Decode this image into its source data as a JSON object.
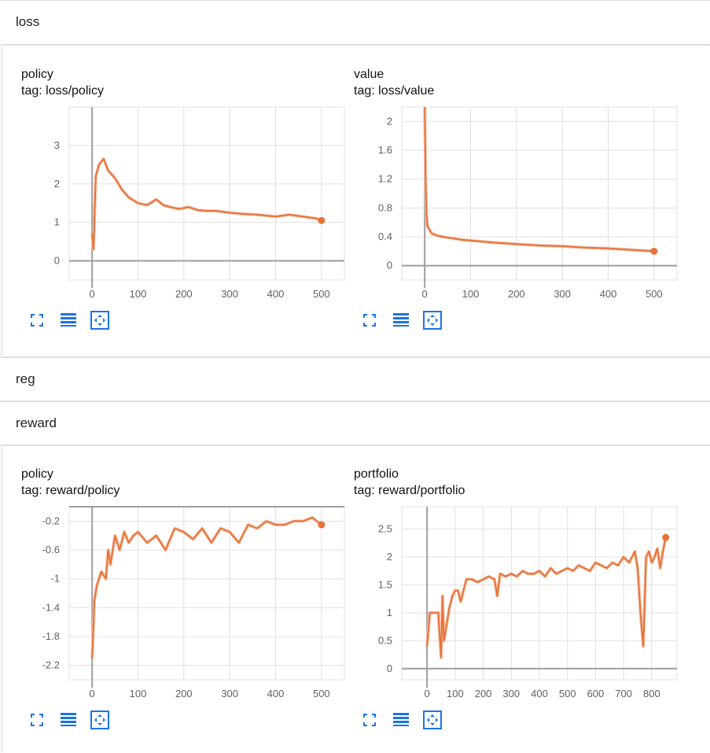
{
  "sections": [
    {
      "name": "loss"
    },
    {
      "name": "reg"
    },
    {
      "name": "reward"
    }
  ],
  "colors": {
    "accent": "#e8733a",
    "smoothed_faint": "#f5c5ab",
    "icon": "#1a73e8",
    "axis": "#9e9e9e"
  },
  "toolbar_icons": [
    "fullscreen-icon",
    "toggle-log-scale-icon",
    "fit-domain-icon"
  ],
  "charts": [
    {
      "title": "policy",
      "tag": "tag: loss/policy",
      "xticks": [
        "0",
        "100",
        "200",
        "300",
        "400",
        "500"
      ],
      "yticks": [
        "0",
        "1",
        "2",
        "3"
      ]
    },
    {
      "title": "value",
      "tag": "tag: loss/value",
      "xticks": [
        "0",
        "100",
        "200",
        "300",
        "400",
        "500"
      ],
      "yticks": [
        "0",
        "0.4",
        "0.8",
        "1.2",
        "1.6",
        "2"
      ]
    },
    {
      "title": "policy",
      "tag": "tag: reward/policy",
      "xticks": [
        "0",
        "100",
        "200",
        "300",
        "400",
        "500"
      ],
      "yticks": [
        "-2.2",
        "-1.8",
        "-1.4",
        "-1",
        "-0.6",
        "-0.2"
      ]
    },
    {
      "title": "portfolio",
      "tag": "tag: reward/portfolio",
      "xticks": [
        "0",
        "100",
        "200",
        "300",
        "400",
        "500",
        "600",
        "700",
        "800"
      ],
      "yticks": [
        "0",
        "0.5",
        "1",
        "1.5",
        "2",
        "2.5"
      ]
    }
  ],
  "chart_data": [
    {
      "type": "line",
      "title": "policy",
      "subtitle": "tag: loss/policy",
      "xlim": [
        -50,
        550
      ],
      "ylim": [
        -0.5,
        4
      ],
      "series": [
        {
          "x": [
            0,
            3,
            8,
            15,
            25,
            35,
            50,
            65,
            80,
            100,
            120,
            140,
            155,
            170,
            190,
            210,
            230,
            250,
            270,
            300,
            330,
            360,
            400,
            430,
            460,
            490,
            500
          ],
          "y": [
            0.7,
            0.3,
            2.2,
            2.5,
            2.65,
            2.35,
            2.15,
            1.85,
            1.65,
            1.5,
            1.45,
            1.6,
            1.45,
            1.4,
            1.35,
            1.4,
            1.32,
            1.3,
            1.3,
            1.25,
            1.22,
            1.2,
            1.15,
            1.2,
            1.15,
            1.1,
            1.05
          ]
        }
      ],
      "grid": true
    },
    {
      "type": "line",
      "title": "value",
      "subtitle": "tag: loss/value",
      "xlim": [
        -50,
        550
      ],
      "ylim": [
        -0.2,
        2.2
      ],
      "series": [
        {
          "x": [
            0,
            2,
            4,
            6,
            10,
            15,
            25,
            40,
            60,
            80,
            100,
            150,
            200,
            250,
            300,
            350,
            400,
            450,
            500
          ],
          "y": [
            2.2,
            1.2,
            0.7,
            0.55,
            0.5,
            0.45,
            0.42,
            0.4,
            0.38,
            0.36,
            0.35,
            0.32,
            0.3,
            0.28,
            0.27,
            0.25,
            0.24,
            0.22,
            0.2
          ]
        }
      ],
      "grid": true
    },
    {
      "type": "line",
      "title": "policy",
      "subtitle": "tag: reward/policy",
      "xlim": [
        -50,
        550
      ],
      "ylim": [
        -2.4,
        0
      ],
      "series": [
        {
          "x": [
            0,
            5,
            10,
            20,
            30,
            35,
            40,
            50,
            60,
            70,
            80,
            90,
            100,
            120,
            140,
            160,
            180,
            200,
            220,
            240,
            260,
            280,
            300,
            320,
            340,
            360,
            380,
            400,
            420,
            440,
            460,
            480,
            500
          ],
          "y": [
            -2.1,
            -1.3,
            -1.1,
            -0.9,
            -1.0,
            -0.6,
            -0.8,
            -0.4,
            -0.6,
            -0.35,
            -0.5,
            -0.4,
            -0.35,
            -0.5,
            -0.4,
            -0.6,
            -0.3,
            -0.35,
            -0.45,
            -0.3,
            -0.5,
            -0.3,
            -0.35,
            -0.5,
            -0.25,
            -0.3,
            -0.2,
            -0.25,
            -0.25,
            -0.2,
            -0.2,
            -0.15,
            -0.25
          ]
        }
      ],
      "grid": true
    },
    {
      "type": "line",
      "title": "portfolio",
      "subtitle": "tag: reward/portfolio",
      "xlim": [
        -90,
        890
      ],
      "ylim": [
        -0.2,
        2.9
      ],
      "series": [
        {
          "x": [
            0,
            10,
            20,
            40,
            50,
            55,
            60,
            80,
            90,
            100,
            110,
            120,
            140,
            160,
            180,
            200,
            220,
            240,
            250,
            260,
            280,
            300,
            320,
            340,
            360,
            380,
            400,
            420,
            440,
            460,
            480,
            500,
            520,
            540,
            560,
            580,
            600,
            620,
            640,
            660,
            680,
            700,
            720,
            740,
            750,
            760,
            770,
            780,
            790,
            800,
            810,
            820,
            830,
            840,
            850
          ],
          "y": [
            0.4,
            1.0,
            1.0,
            1.0,
            0.2,
            1.3,
            0.5,
            1.1,
            1.3,
            1.4,
            1.4,
            1.2,
            1.6,
            1.6,
            1.55,
            1.6,
            1.65,
            1.6,
            1.3,
            1.7,
            1.65,
            1.7,
            1.65,
            1.75,
            1.7,
            1.7,
            1.75,
            1.65,
            1.8,
            1.7,
            1.75,
            1.8,
            1.75,
            1.85,
            1.8,
            1.75,
            1.9,
            1.85,
            1.8,
            1.9,
            1.85,
            2.0,
            1.9,
            2.1,
            1.8,
            1.0,
            0.4,
            2.0,
            2.1,
            1.9,
            2.0,
            2.15,
            1.8,
            2.1,
            2.35
          ]
        }
      ],
      "grid": true
    }
  ]
}
